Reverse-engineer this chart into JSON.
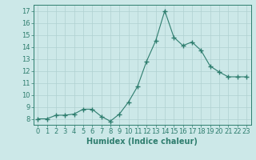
{
  "x": [
    0,
    1,
    2,
    3,
    4,
    5,
    6,
    7,
    8,
    9,
    10,
    11,
    12,
    13,
    14,
    15,
    16,
    17,
    18,
    19,
    20,
    21,
    22,
    23
  ],
  "y": [
    8.0,
    8.0,
    8.3,
    8.3,
    8.4,
    8.8,
    8.8,
    8.2,
    7.8,
    8.4,
    9.4,
    10.7,
    12.8,
    14.5,
    17.0,
    14.8,
    14.1,
    14.4,
    13.7,
    12.4,
    11.9,
    11.5,
    11.5,
    11.5
  ],
  "line_color": "#2e7d6e",
  "marker": "+",
  "marker_size": 4,
  "bg_color": "#cce8e8",
  "grid_color": "#b0d0d0",
  "xlabel": "Humidex (Indice chaleur)",
  "ylim": [
    7.5,
    17.5
  ],
  "xlim": [
    -0.5,
    23.5
  ],
  "yticks": [
    8,
    9,
    10,
    11,
    12,
    13,
    14,
    15,
    16,
    17
  ],
  "xticks": [
    0,
    1,
    2,
    3,
    4,
    5,
    6,
    7,
    8,
    9,
    10,
    11,
    12,
    13,
    14,
    15,
    16,
    17,
    18,
    19,
    20,
    21,
    22,
    23
  ],
  "xtick_labels": [
    "0",
    "1",
    "2",
    "3",
    "4",
    "5",
    "6",
    "7",
    "8",
    "9",
    "10",
    "11",
    "12",
    "13",
    "14",
    "15",
    "16",
    "17",
    "18",
    "19",
    "20",
    "21",
    "22",
    "23"
  ],
  "tick_color": "#2e7d6e",
  "spine_color": "#2e7d6e",
  "xlabel_fontsize": 7,
  "tick_fontsize": 6,
  "grid_major_color": "#c8dada",
  "grid_minor_color": "#daeaea"
}
